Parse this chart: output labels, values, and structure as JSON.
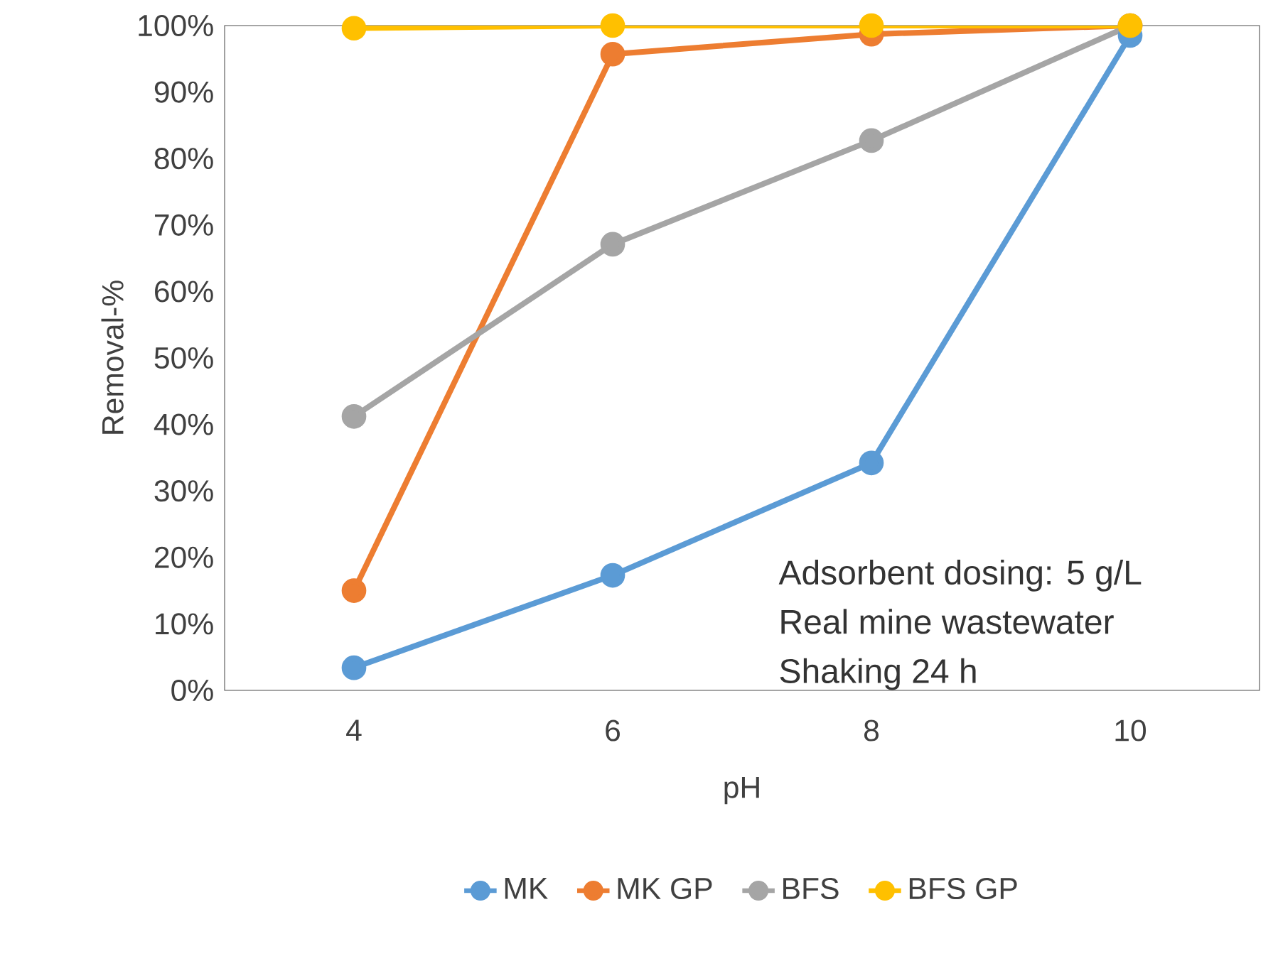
{
  "chart_data": {
    "type": "line",
    "xlabel": "pH",
    "ylabel": "Removal-%",
    "x": [
      4,
      6,
      8,
      10
    ],
    "xlim": [
      3,
      11
    ],
    "xticks": [
      4,
      6,
      8,
      10
    ],
    "ylim": [
      0,
      100
    ],
    "yticks": [
      {
        "value": 0,
        "label": "0%"
      },
      {
        "value": 10,
        "label": "10%"
      },
      {
        "value": 20,
        "label": "20%"
      },
      {
        "value": 30,
        "label": "30%"
      },
      {
        "value": 40,
        "label": "40%"
      },
      {
        "value": 50,
        "label": "50%"
      },
      {
        "value": 60,
        "label": "60%"
      },
      {
        "value": 70,
        "label": "70%"
      },
      {
        "value": 80,
        "label": "80%"
      },
      {
        "value": 90,
        "label": "90%"
      },
      {
        "value": 100,
        "label": "100%"
      }
    ],
    "series": [
      {
        "name": "MK",
        "color": "#5b9bd5",
        "values": [
          3.4,
          17.3,
          34.2,
          98.5
        ]
      },
      {
        "name": "MK GP",
        "color": "#ed7d31",
        "values": [
          15,
          95.7,
          98.7,
          100
        ]
      },
      {
        "name": "BFS",
        "color": "#a5a5a5",
        "values": [
          41.2,
          67.1,
          82.7,
          100
        ]
      },
      {
        "name": "BFS GP",
        "color": "#ffc000",
        "values": [
          99.6,
          100,
          100,
          100
        ]
      }
    ],
    "annotations": [
      "Adsorbent dosing: 5 g/L",
      "Real mine wastewater",
      "Shaking 24 h"
    ],
    "grid": false,
    "legend": "bottom",
    "marker": "circle",
    "line_style": "solid"
  }
}
